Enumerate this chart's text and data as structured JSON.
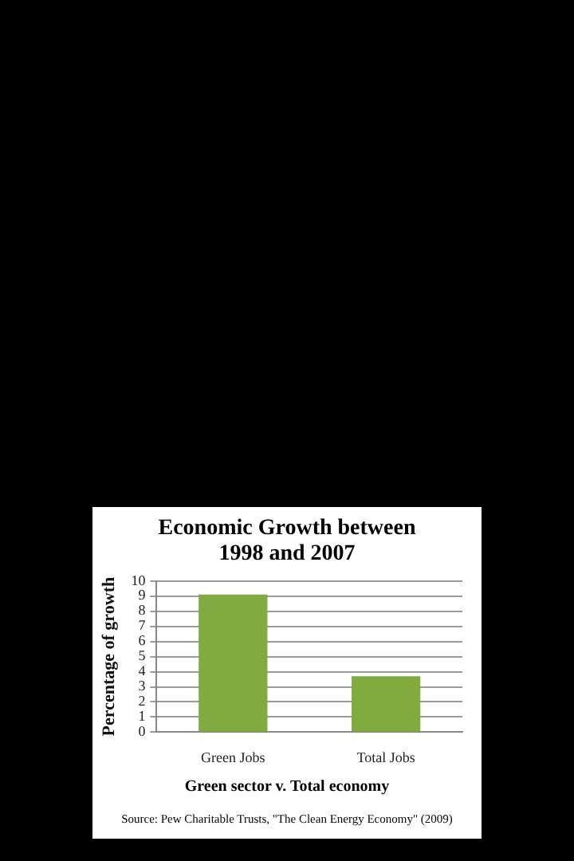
{
  "chart_data": {
    "type": "bar",
    "title": "Economic Growth between 1998 and 2007",
    "xlabel": "Green sector v. Total economy",
    "ylabel": "Percentage of growth",
    "categories": [
      "Green Jobs",
      "Total Jobs"
    ],
    "values": [
      9.1,
      3.7
    ],
    "color": "#7fac3c",
    "ylim": [
      0,
      10
    ],
    "yticks": [
      0,
      1,
      2,
      3,
      4,
      5,
      6,
      7,
      8,
      9,
      10
    ],
    "grid": "y",
    "legend": false,
    "annotations": [
      "Source: Pew Charitable Trusts, \"The Clean Energy Economy\" (2009)"
    ]
  }
}
